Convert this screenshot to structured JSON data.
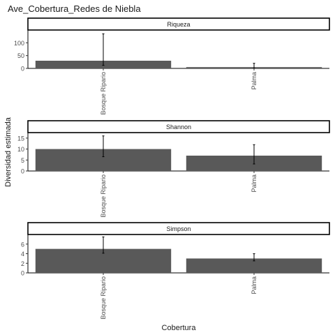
{
  "chart_data": {
    "type": "bar",
    "title": "Ave_Cobertura_Redes de Niebla",
    "xlabel": "Cobertura",
    "ylabel": "Diversidad estimada",
    "categories": [
      "Bosque Ripario",
      "Palma"
    ],
    "bar_color": "#595959",
    "grid": false,
    "panels": [
      {
        "strip_label": "Riqueza",
        "ylim": [
          0,
          150
        ],
        "yticks": [
          0,
          50,
          100
        ],
        "values": [
          30,
          5
        ],
        "error_low": [
          12,
          0
        ],
        "error_high": [
          135,
          20
        ]
      },
      {
        "strip_label": "Shannon",
        "ylim": [
          0,
          17.5
        ],
        "yticks": [
          0,
          5,
          10,
          15
        ],
        "values": [
          10,
          7
        ],
        "error_low": [
          6.5,
          3.2
        ],
        "error_high": [
          16,
          12
        ]
      },
      {
        "strip_label": "Simpson",
        "ylim": [
          0,
          8
        ],
        "yticks": [
          0,
          2,
          4,
          6
        ],
        "values": [
          5,
          3
        ],
        "error_low": [
          4.1,
          2.5
        ],
        "error_high": [
          7.5,
          4
        ]
      }
    ]
  }
}
